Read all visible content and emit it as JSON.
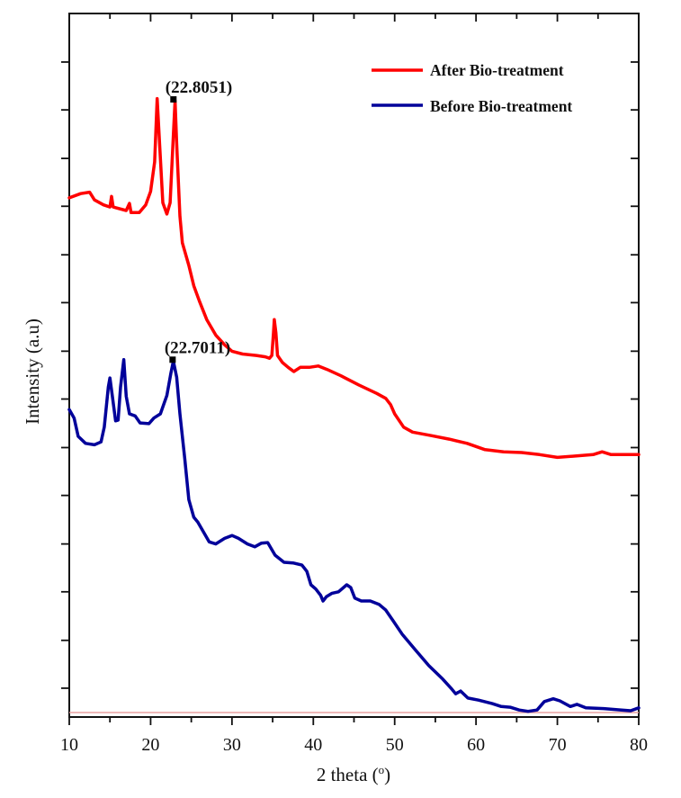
{
  "chart_data": {
    "type": "line",
    "title": "",
    "xlabel": "2 theta (º)",
    "xlabel_main": "2 theta (",
    "xlabel_sup": "o",
    "xlabel_close": ")",
    "ylabel": "Intensity (a.u)",
    "xlim": [
      10,
      80
    ],
    "ylim": [
      0,
      100
    ],
    "x_ticks": [
      10,
      20,
      30,
      40,
      50,
      60,
      70,
      80
    ],
    "x_tick_labels": [
      "10",
      "20",
      "30",
      "40",
      "50",
      "60",
      "70",
      "80"
    ],
    "x_minor_step": 5,
    "y_ticks": [
      4.1,
      10.9,
      17.8,
      24.6,
      31.5,
      38.3,
      45.2,
      52.0,
      58.9,
      65.7,
      72.6,
      79.4,
      86.3,
      93.1
    ],
    "y_tick_labels_shown": false,
    "grid": false,
    "legend_position": "top-right",
    "baseline": {
      "y": 0.64,
      "color": "#e8a0a0"
    },
    "series": [
      {
        "name": "After Bio-treatment",
        "color": "#ff0000",
        "x": [
          10,
          11.4,
          12.5,
          13.1,
          14.2,
          15.0,
          15.2,
          15.4,
          17.0,
          17.4,
          17.6,
          18.6,
          19.4,
          20.0,
          20.5,
          20.8,
          21.1,
          21.5,
          22.0,
          22.4,
          22.8,
          23.0,
          23.2,
          23.6,
          23.9,
          24.7,
          25.3,
          26.0,
          26.9,
          28.0,
          29.1,
          30.0,
          31.3,
          33.0,
          34.1,
          34.6,
          34.9,
          35.1,
          35.2,
          35.4,
          35.6,
          36.2,
          36.9,
          37.6,
          38.4,
          39.5,
          40.6,
          41.7,
          43.4,
          45.6,
          47.8,
          48.9,
          49.5,
          50.0,
          51.1,
          52.2,
          54.5,
          56.7,
          58.9,
          61.1,
          63.4,
          65.6,
          67.8,
          70.0,
          72.2,
          74.4,
          75.5,
          76.6,
          80.0
        ],
        "y": [
          73.8,
          74.4,
          74.6,
          73.5,
          72.8,
          72.5,
          74.0,
          72.5,
          72.0,
          73.0,
          71.7,
          71.7,
          72.8,
          74.7,
          78.9,
          87.9,
          81.5,
          73.1,
          71.5,
          73.1,
          82.7,
          87.6,
          81.5,
          71.2,
          67.4,
          64.2,
          61.3,
          59.1,
          56.5,
          54.3,
          52.9,
          52.0,
          51.6,
          51.4,
          51.2,
          51.0,
          51.4,
          54.6,
          56.5,
          54.6,
          51.4,
          50.4,
          49.7,
          49.1,
          49.7,
          49.7,
          49.9,
          49.4,
          48.5,
          47.2,
          46.0,
          45.3,
          44.4,
          43.1,
          41.2,
          40.5,
          40.0,
          39.5,
          38.9,
          38.0,
          37.7,
          37.6,
          37.3,
          36.9,
          37.1,
          37.3,
          37.7,
          37.3,
          37.3
        ],
        "annotation": {
          "label": "(22.8051)",
          "x": 22.8051,
          "y": 87.6
        }
      },
      {
        "name": "Before Bio-treatment",
        "color": "#00009a",
        "x": [
          10,
          10.6,
          11.1,
          12.0,
          13.1,
          13.9,
          14.3,
          14.8,
          15.0,
          15.3,
          15.7,
          16.0,
          16.3,
          16.7,
          17.0,
          17.4,
          18.1,
          18.7,
          19.8,
          20.4,
          21.2,
          22.0,
          22.5,
          22.8,
          23.2,
          23.6,
          24.2,
          24.7,
          25.3,
          25.8,
          26.4,
          27.2,
          28.0,
          29.1,
          30.0,
          30.8,
          31.9,
          32.8,
          33.6,
          34.4,
          35.3,
          36.4,
          37.5,
          38.6,
          39.2,
          39.7,
          40.3,
          40.9,
          41.2,
          41.6,
          42.3,
          43.1,
          44.1,
          44.6,
          45.1,
          45.9,
          47.0,
          48.1,
          48.9,
          49.8,
          50.9,
          52.5,
          54.2,
          55.9,
          57.0,
          57.5,
          58.1,
          59.0,
          60.3,
          62.0,
          63.1,
          64.2,
          65.3,
          66.4,
          67.5,
          68.4,
          69.5,
          70.3,
          71.6,
          72.4,
          73.5,
          75.7,
          77.9,
          79.0,
          80.0
        ],
        "y": [
          43.7,
          42.5,
          39.9,
          38.9,
          38.7,
          39.1,
          41.2,
          46.9,
          48.2,
          45.6,
          42.1,
          42.2,
          46.9,
          50.8,
          45.6,
          43.1,
          42.8,
          41.8,
          41.7,
          42.5,
          43.1,
          45.7,
          48.9,
          50.6,
          48.3,
          43.1,
          36.7,
          30.9,
          28.4,
          27.7,
          26.5,
          24.9,
          24.6,
          25.4,
          25.8,
          25.4,
          24.6,
          24.2,
          24.7,
          24.8,
          23.0,
          22.0,
          21.9,
          21.6,
          20.7,
          18.8,
          18.2,
          17.3,
          16.5,
          17.1,
          17.6,
          17.8,
          18.8,
          18.4,
          16.9,
          16.5,
          16.5,
          16.0,
          15.2,
          13.7,
          11.8,
          9.6,
          7.3,
          5.4,
          4.0,
          3.3,
          3.7,
          2.7,
          2.4,
          1.9,
          1.5,
          1.4,
          1.0,
          0.8,
          1.0,
          2.2,
          2.6,
          2.3,
          1.5,
          1.8,
          1.3,
          1.2,
          1.0,
          0.9,
          1.3
        ],
        "annotation": {
          "label": "(22.7011)",
          "x": 22.7011,
          "y": 50.6
        }
      }
    ]
  }
}
